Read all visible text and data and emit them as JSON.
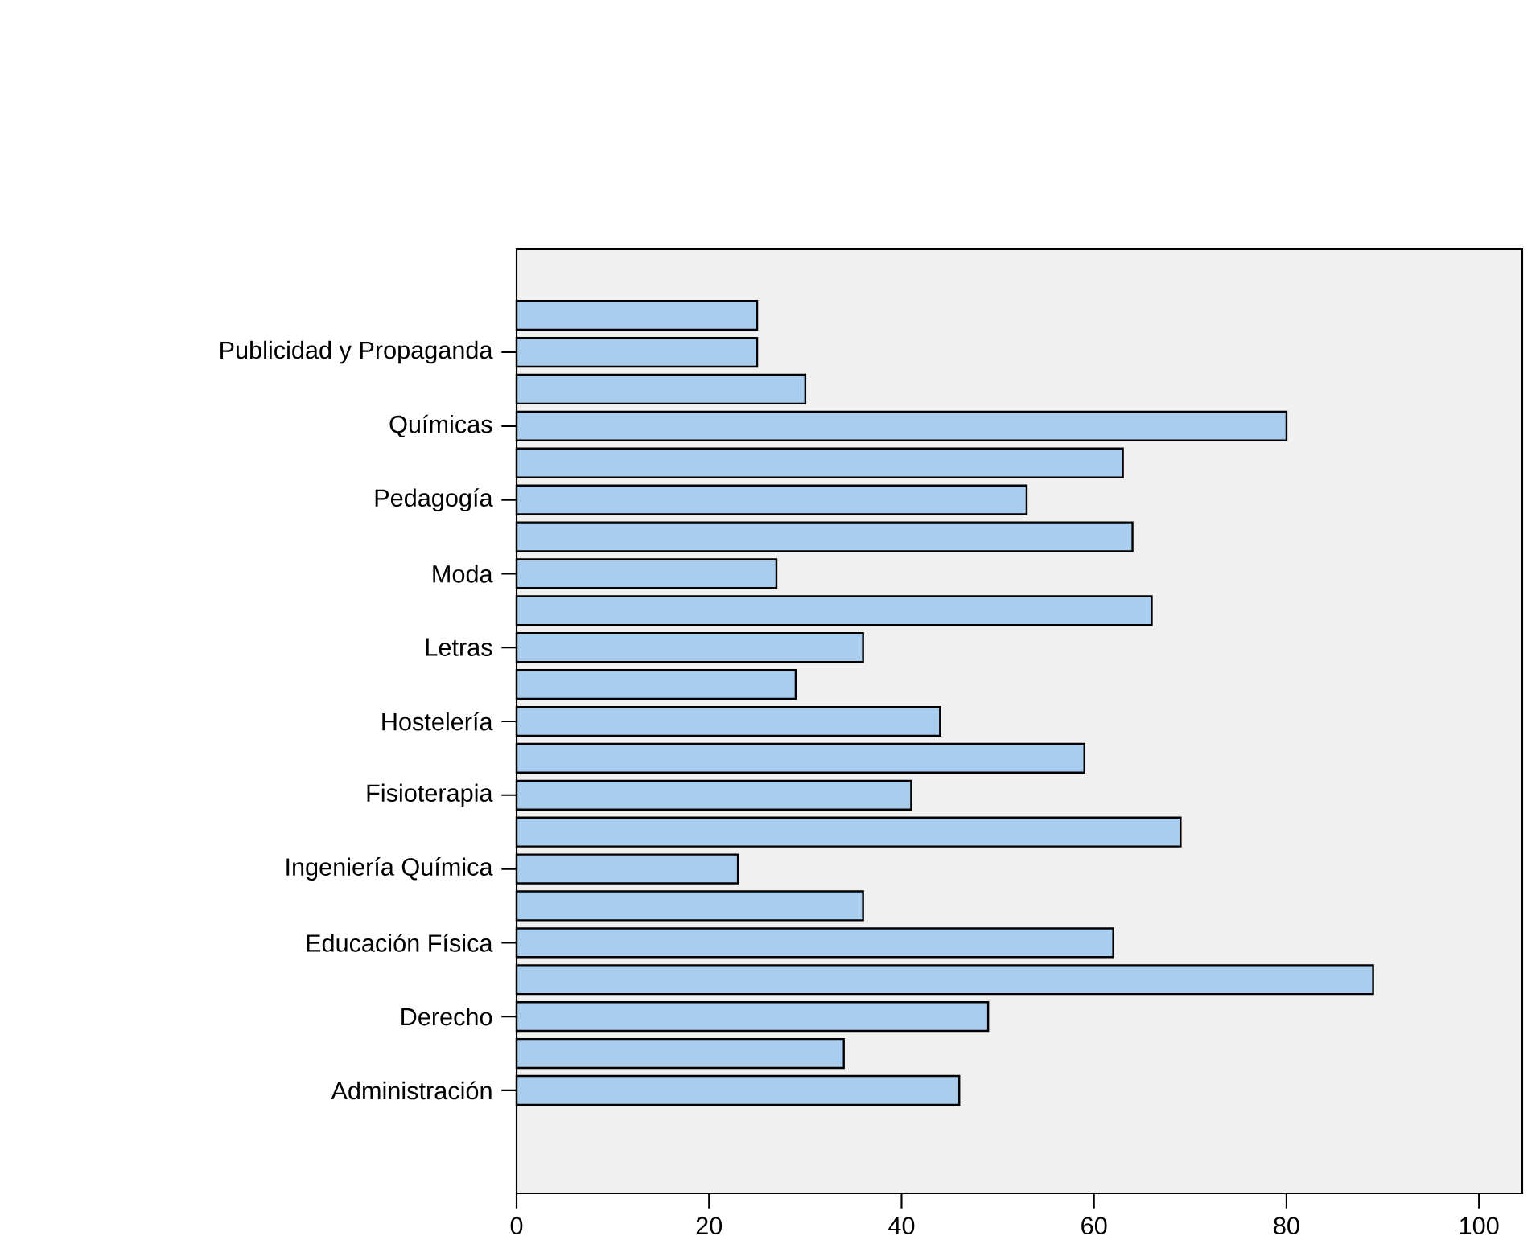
{
  "chart_data": {
    "type": "bar",
    "orientation": "horizontal",
    "categories": [
      null,
      "Publicidad y Propaganda",
      null,
      "Químicas",
      null,
      "Pedagogía",
      null,
      "Moda",
      null,
      "Letras",
      null,
      "Hostelería",
      null,
      "Fisioterapia",
      null,
      "Ingeniería Química",
      null,
      "Educación Física",
      null,
      "Derecho",
      null,
      "Administración"
    ],
    "values": [
      25,
      25,
      30,
      80,
      63,
      53,
      64,
      27,
      66,
      36,
      29,
      44,
      59,
      41,
      69,
      23,
      36,
      62,
      89,
      49,
      34,
      46
    ],
    "color": "#a9cdef",
    "xlim": [
      0,
      104.5
    ],
    "xticks": [
      0,
      20,
      40,
      60,
      80,
      100
    ],
    "grid": false
  }
}
